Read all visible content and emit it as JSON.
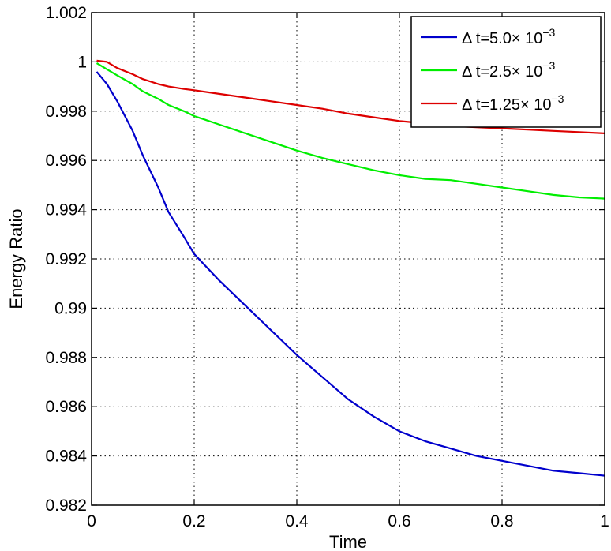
{
  "chart_data": {
    "type": "line",
    "title": "",
    "xlabel": "Time",
    "ylabel": "Energy Ratio",
    "xlim": [
      0,
      1
    ],
    "ylim": [
      0.982,
      1.002
    ],
    "grid": true,
    "legend_position": "top-right",
    "x_ticks": [
      "0",
      "0.2",
      "0.4",
      "0.6",
      "0.8",
      "1"
    ],
    "y_ticks": [
      "0.982",
      "0.984",
      "0.986",
      "0.988",
      "0.99",
      "0.992",
      "0.994",
      "0.996",
      "0.998",
      "1",
      "1.002"
    ],
    "series": [
      {
        "name": "Δ t=5.0× 10",
        "exponent": "−3",
        "color": "#0000cc",
        "x": [
          0.01,
          0.03,
          0.05,
          0.08,
          0.1,
          0.13,
          0.15,
          0.18,
          0.2,
          0.25,
          0.3,
          0.35,
          0.4,
          0.45,
          0.5,
          0.55,
          0.6,
          0.65,
          0.7,
          0.75,
          0.8,
          0.85,
          0.9,
          0.95,
          1.0
        ],
        "y": [
          0.9996,
          0.9991,
          0.9984,
          0.9972,
          0.9962,
          0.9949,
          0.9939,
          0.9929,
          0.9922,
          0.9911,
          0.9901,
          0.9891,
          0.9881,
          0.9872,
          0.9863,
          0.9856,
          0.985,
          0.9846,
          0.9843,
          0.984,
          0.9838,
          0.9836,
          0.9834,
          0.9833,
          0.9832
        ]
      },
      {
        "name": "Δ t=2.5× 10",
        "exponent": "−3",
        "color": "#00ee00",
        "x": [
          0.01,
          0.03,
          0.05,
          0.08,
          0.1,
          0.13,
          0.15,
          0.18,
          0.2,
          0.25,
          0.3,
          0.35,
          0.4,
          0.45,
          0.5,
          0.55,
          0.6,
          0.65,
          0.7,
          0.75,
          0.8,
          0.85,
          0.9,
          0.95,
          1.0
        ],
        "y": [
          0.99995,
          0.9997,
          0.99945,
          0.9991,
          0.9988,
          0.9985,
          0.99825,
          0.998,
          0.9978,
          0.99745,
          0.9971,
          0.99675,
          0.9964,
          0.9961,
          0.99585,
          0.9956,
          0.9954,
          0.99525,
          0.9952,
          0.99505,
          0.9949,
          0.99475,
          0.9946,
          0.9945,
          0.99445
        ]
      },
      {
        "name": "Δ t=1.25× 10",
        "exponent": "−3",
        "color": "#dd0000",
        "x": [
          0.01,
          0.03,
          0.05,
          0.08,
          0.1,
          0.13,
          0.15,
          0.18,
          0.2,
          0.25,
          0.3,
          0.35,
          0.4,
          0.45,
          0.5,
          0.55,
          0.6,
          0.65,
          0.7,
          0.75,
          0.8,
          0.85,
          0.9,
          0.95,
          1.0
        ],
        "y": [
          1.00005,
          1.0,
          0.99975,
          0.9995,
          0.9993,
          0.9991,
          0.999,
          0.9989,
          0.99885,
          0.9987,
          0.99855,
          0.9984,
          0.99825,
          0.9981,
          0.9979,
          0.99775,
          0.9976,
          0.9975,
          0.9974,
          0.99735,
          0.9973,
          0.99725,
          0.9972,
          0.99715,
          0.9971
        ]
      }
    ]
  }
}
